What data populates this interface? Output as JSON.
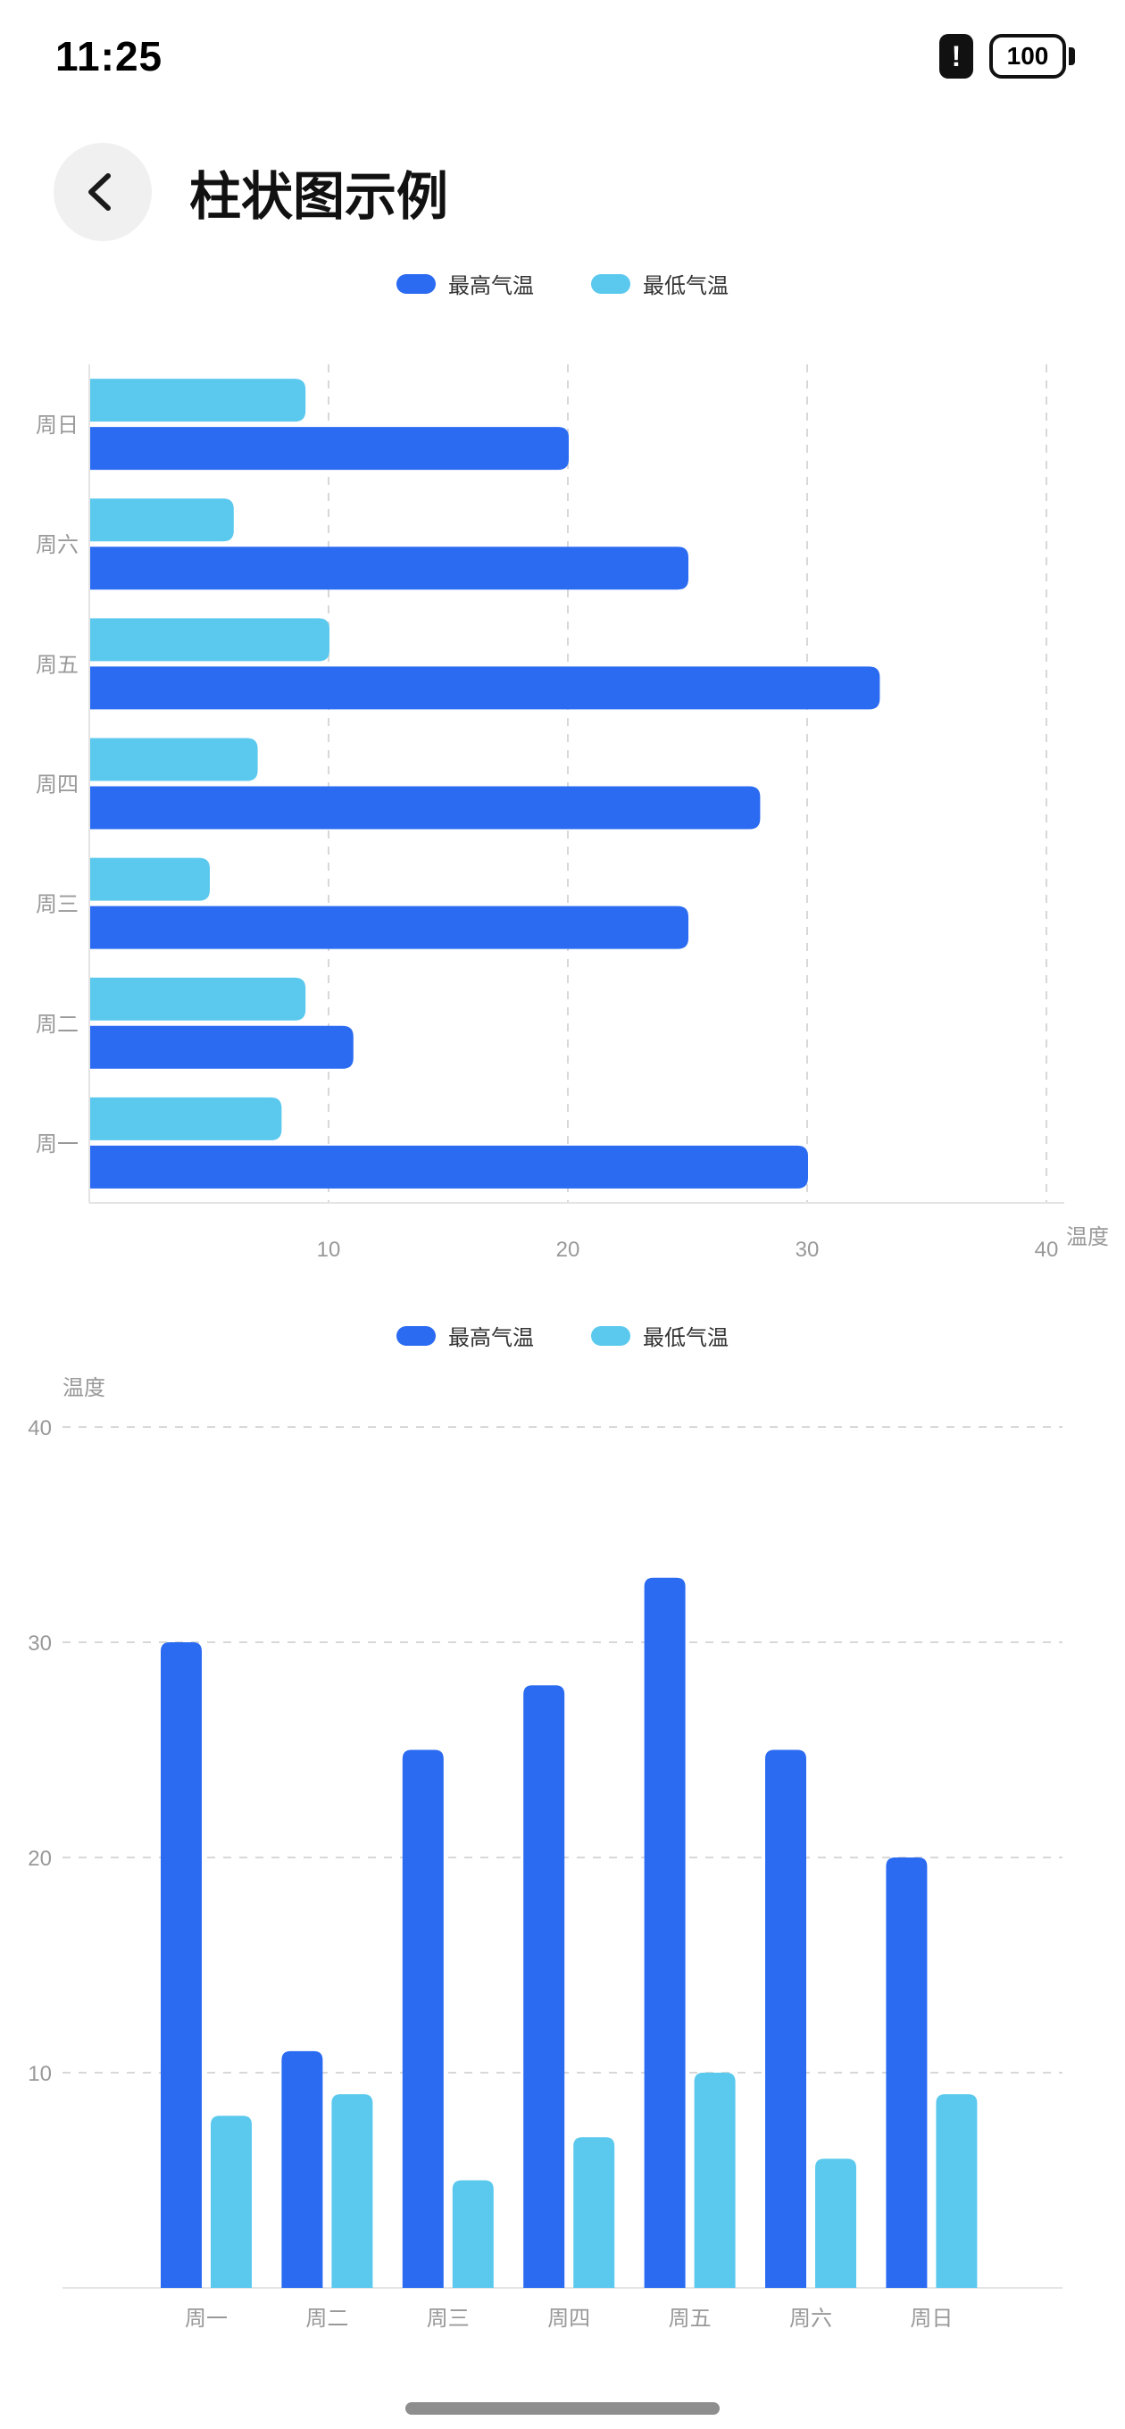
{
  "status_bar": {
    "time": "11:25",
    "battery_alert_glyph": "!",
    "battery_level": "100"
  },
  "header": {
    "title": "柱状图示例"
  },
  "colors": {
    "series_high": "#2b6bf2",
    "series_low": "#5bc9ee",
    "gridline": "#d8d8d8",
    "axis_line": "#e4e4e4",
    "tick_text": "#999999"
  },
  "chart_data": [
    {
      "type": "bar",
      "orientation": "horizontal",
      "categories": [
        "周一",
        "周二",
        "周三",
        "周四",
        "周五",
        "周六",
        "周日"
      ],
      "display_order_top_to_bottom": [
        "周日",
        "周六",
        "周五",
        "周四",
        "周三",
        "周二",
        "周一"
      ],
      "series": [
        {
          "name": "最高气温",
          "color": "#2b6bf2",
          "values": [
            30,
            11,
            25,
            28,
            33,
            25,
            20
          ]
        },
        {
          "name": "最低气温",
          "color": "#5bc9ee",
          "values": [
            8,
            9,
            5,
            7,
            10,
            6,
            9
          ]
        }
      ],
      "xlabel": "温度",
      "x_ticks": [
        10,
        20,
        30,
        40
      ],
      "xlim": [
        0,
        40
      ],
      "grid": "dashed-vertical",
      "legend_position": "top"
    },
    {
      "type": "bar",
      "orientation": "vertical",
      "categories": [
        "周一",
        "周二",
        "周三",
        "周四",
        "周五",
        "周六",
        "周日"
      ],
      "series": [
        {
          "name": "最高气温",
          "color": "#2b6bf2",
          "values": [
            30,
            11,
            25,
            28,
            33,
            25,
            20
          ]
        },
        {
          "name": "最低气温",
          "color": "#5bc9ee",
          "values": [
            8,
            9,
            5,
            7,
            10,
            6,
            9
          ]
        }
      ],
      "ylabel": "温度",
      "y_ticks": [
        10,
        20,
        30,
        40
      ],
      "ylim": [
        0,
        40
      ],
      "grid": "dashed-horizontal",
      "legend_position": "top"
    }
  ]
}
